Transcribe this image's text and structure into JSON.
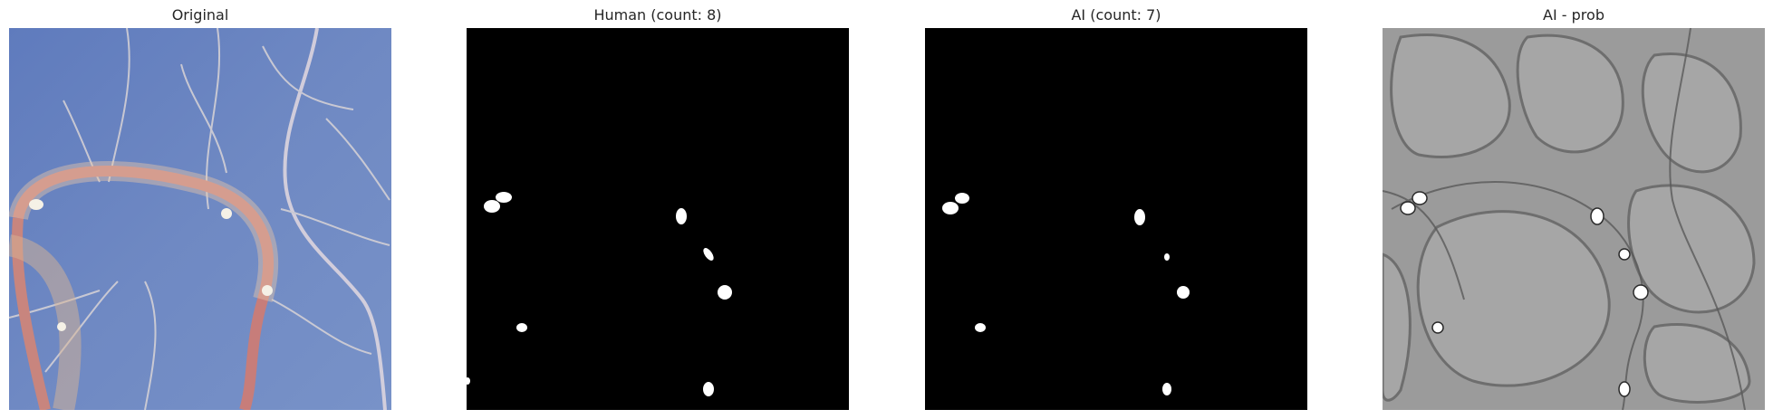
{
  "figure": {
    "panels": [
      {
        "title": "Original",
        "image": "root-photograph"
      },
      {
        "title": "Human (count: 8)",
        "image": "binary-mask-human"
      },
      {
        "title": "AI (count: 7)",
        "image": "binary-mask-ai"
      },
      {
        "title": "AI - prob",
        "image": "grayscale-probability-map"
      }
    ],
    "colors": {
      "background": "#ffffff",
      "title_text": "#262626",
      "photo_bg": "#6d86c0",
      "root_ring": "#c9817d",
      "mask_bg": "#000000",
      "mask_fg": "#ffffff",
      "prob_bg": "#9a9a9a"
    }
  }
}
